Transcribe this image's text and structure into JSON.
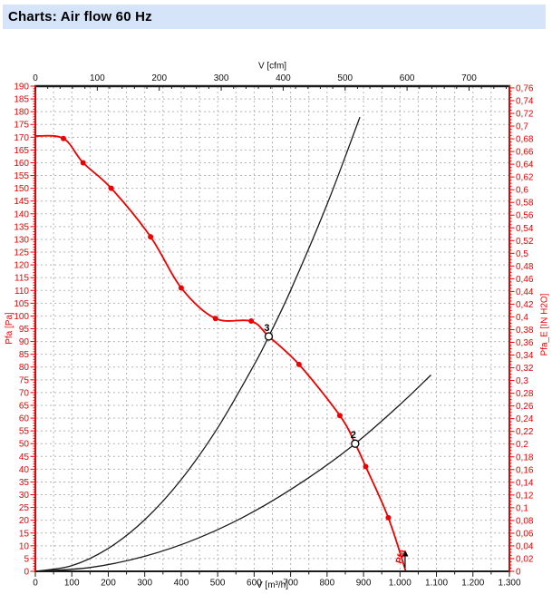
{
  "header": {
    "title": "Charts: Air flow 60 Hz"
  },
  "colors": {
    "red": "#ee0000",
    "black": "#1a1a1a",
    "grid": "#b5b5b5",
    "header_bg": "#d6e4fa"
  },
  "chart_data": {
    "type": "line",
    "title": "Air flow 60 Hz",
    "grid": "dotted",
    "axes": {
      "bottom": {
        "label": "V [m³/h]",
        "min": 0,
        "max": 1300,
        "major_step": 100,
        "minor_step": 50
      },
      "top": {
        "label": "V [cfm]",
        "min": 0,
        "unit_to_m3h": 1.699,
        "major_step": 100,
        "label_max": 700,
        "minor_step": 20,
        "minor_max": 760
      },
      "left": {
        "label": "Pfa [Pa]",
        "min": 0,
        "max": 190,
        "major_step": 5,
        "minor_step": 1
      },
      "right": {
        "label": "Pfa_E [IN H2O]",
        "min": 0,
        "max": 0.76,
        "unit_to_pa": 249.089,
        "major_step": 0.02,
        "minor_step": 0.005
      }
    },
    "series": [
      {
        "name": "fan-pressure-curve",
        "color": "#ee0000",
        "width": 1.8,
        "points": [
          [
            0,
            170.5
          ],
          [
            77,
            169.5
          ],
          [
            131,
            160
          ],
          [
            208,
            150
          ],
          [
            316,
            131
          ],
          [
            400,
            111
          ],
          [
            494,
            99
          ],
          [
            592,
            98
          ],
          [
            640,
            92
          ],
          [
            723,
            81
          ],
          [
            835,
            61
          ],
          [
            877,
            50
          ],
          [
            906,
            41
          ],
          [
            968,
            21
          ],
          [
            1016,
            0
          ]
        ],
        "markers": [
          [
            77,
            169.5
          ],
          [
            131,
            160
          ],
          [
            208,
            150
          ],
          [
            316,
            131
          ],
          [
            400,
            111
          ],
          [
            494,
            99
          ],
          [
            592,
            98
          ],
          [
            723,
            81
          ],
          [
            835,
            61
          ],
          [
            906,
            41
          ],
          [
            968,
            21
          ]
        ]
      },
      {
        "name": "system-curve-steep",
        "color": "#1a1a1a",
        "width": 1.3,
        "points": [
          [
            0,
            0
          ],
          [
            100,
            2.2
          ],
          [
            200,
            9
          ],
          [
            300,
            20.2
          ],
          [
            400,
            35.9
          ],
          [
            500,
            56.2
          ],
          [
            600,
            80.9
          ],
          [
            640,
            92
          ],
          [
            700,
            110
          ],
          [
            800,
            143.7
          ],
          [
            890,
            177.9
          ]
        ]
      },
      {
        "name": "system-curve-shallow",
        "color": "#1a1a1a",
        "width": 1.3,
        "points": [
          [
            0,
            0
          ],
          [
            150,
            1.5
          ],
          [
            300,
            5.9
          ],
          [
            450,
            13.2
          ],
          [
            600,
            23.5
          ],
          [
            750,
            36.7
          ],
          [
            877,
            50
          ],
          [
            1000,
            65.3
          ],
          [
            1085,
            76.9
          ]
        ]
      }
    ],
    "operating_points": [
      {
        "label": "3",
        "v": 640,
        "pa": 92
      },
      {
        "label": "2",
        "v": 877,
        "pa": 50
      }
    ],
    "curve_end_label": {
      "text": "Pfa",
      "v": 1006,
      "angle": -73
    },
    "end_arrow": {
      "v": 1014
    }
  }
}
